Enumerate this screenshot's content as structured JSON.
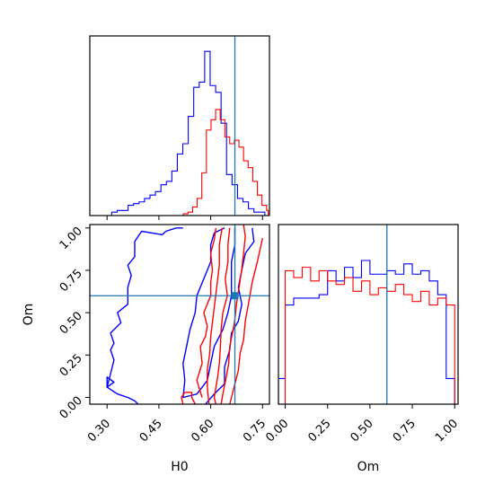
{
  "chart_data": {
    "type": "corner",
    "parameters": [
      "H0",
      "Om"
    ],
    "colors": {
      "blue": "#0000ff",
      "red": "#ff0000",
      "truth": "#1f77b4"
    },
    "truth": {
      "H0": 0.67,
      "Om": 0.6
    },
    "panels": [
      {
        "id": "hist_H0",
        "type": "histogram",
        "xlim": [
          0.25,
          0.77
        ],
        "ylim": [
          0,
          105
        ],
        "y_ticks_visible": false,
        "x_tick_labels_visible": false,
        "x_ticks": [
          0.3,
          0.45,
          0.6,
          0.75
        ],
        "series": [
          {
            "color": "blue",
            "bin_edges": [
              0.25,
              0.2658,
              0.2817,
              0.2975,
              0.3133,
              0.3292,
              0.345,
              0.3608,
              0.3767,
              0.3925,
              0.4083,
              0.4242,
              0.44,
              0.4558,
              0.4717,
              0.4875,
              0.5033,
              0.5192,
              0.535,
              0.5508,
              0.5667,
              0.5825,
              0.5983,
              0.6142,
              0.63,
              0.6458,
              0.6617,
              0.6775,
              0.6933,
              0.7092,
              0.725,
              0.7408,
              0.7567
            ],
            "counts": [
              0,
              0,
              0,
              0,
              2,
              3,
              3,
              6,
              7,
              8,
              10,
              12,
              14,
              18,
              20,
              26,
              36,
              42,
              58,
              75,
              78,
              96,
              76,
              72,
              54,
              24,
              18,
              10,
              8,
              4,
              2,
              2
            ]
          },
          {
            "color": "red",
            "bin_edges": [
              0.5208,
              0.5342,
              0.5475,
              0.5608,
              0.5742,
              0.5875,
              0.6008,
              0.6142,
              0.6275,
              0.6408,
              0.655,
              0.6683,
              0.6817,
              0.695,
              0.7083,
              0.7217,
              0.735,
              0.7483,
              0.7617,
              0.7666
            ],
            "counts": [
              1,
              2,
              5,
              10,
              25,
              50,
              56,
              62,
              56,
              46,
              42,
              44,
              40,
              32,
              28,
              20,
              12,
              6,
              3
            ]
          }
        ]
      },
      {
        "id": "contour_H0_Om",
        "type": "contour",
        "xlabel": "H0",
        "ylabel": "Om",
        "xlim": [
          0.25,
          0.77
        ],
        "ylim": [
          -0.04,
          1.02
        ],
        "x_ticks": [
          0.3,
          0.45,
          0.6,
          0.75
        ],
        "x_tick_labels": [
          "0.30",
          "0.45",
          "0.60",
          "0.75"
        ],
        "y_ticks": [
          0.0,
          0.25,
          0.5,
          0.75,
          1.0
        ],
        "y_tick_labels": [
          "0.00",
          "0.25",
          "0.50",
          "0.75",
          "1.00"
        ],
        "contours": [
          {
            "color": "blue",
            "points": [
              [
                0.64,
                1.0
              ],
              [
                0.61,
                0.97
              ],
              [
                0.6,
                0.9
              ],
              [
                0.6,
                0.8
              ],
              [
                0.58,
                0.7
              ],
              [
                0.56,
                0.6
              ],
              [
                0.555,
                0.5
              ],
              [
                0.54,
                0.4
              ],
              [
                0.53,
                0.3
              ],
              [
                0.52,
                0.2
              ],
              [
                0.525,
                0.1
              ],
              [
                0.52,
                0.0
              ],
              [
                0.56,
                0.02
              ],
              [
                0.59,
                0.1
              ],
              [
                0.6,
                0.2
              ],
              [
                0.61,
                0.3
              ],
              [
                0.635,
                0.4
              ],
              [
                0.65,
                0.5
              ],
              [
                0.66,
                0.6
              ],
              [
                0.66,
                0.7
              ],
              [
                0.66,
                0.8
              ],
              [
                0.67,
                0.9
              ],
              [
                0.67,
                1.0
              ]
            ]
          },
          {
            "color": "blue",
            "points": [
              [
                0.52,
                1.0
              ],
              [
                0.5,
                1.0
              ],
              [
                0.47,
                0.98
              ],
              [
                0.46,
                0.96
              ],
              [
                0.4,
                0.98
              ],
              [
                0.38,
                0.92
              ],
              [
                0.38,
                0.83
              ],
              [
                0.36,
                0.78
              ],
              [
                0.37,
                0.72
              ],
              [
                0.36,
                0.65
              ],
              [
                0.36,
                0.55
              ],
              [
                0.33,
                0.5
              ],
              [
                0.34,
                0.44
              ],
              [
                0.31,
                0.38
              ],
              [
                0.32,
                0.32
              ],
              [
                0.31,
                0.28
              ],
              [
                0.32,
                0.22
              ],
              [
                0.31,
                0.14
              ],
              [
                0.3,
                0.06
              ],
              [
                0.33,
                0.02
              ],
              [
                0.36,
                0.0
              ],
              [
                0.38,
                -0.02
              ],
              [
                0.39,
                -0.04
              ]
            ]
          },
          {
            "color": "blue",
            "points": [
              [
                0.3,
                0.06
              ],
              [
                0.32,
                0.09
              ],
              [
                0.3,
                0.12
              ],
              [
                0.3,
                0.06
              ]
            ]
          },
          {
            "color": "blue",
            "points": [
              [
                0.72,
                1.0
              ],
              [
                0.725,
                0.92
              ],
              [
                0.7,
                0.85
              ],
              [
                0.69,
                0.75
              ],
              [
                0.68,
                0.65
              ],
              [
                0.69,
                0.55
              ],
              [
                0.68,
                0.45
              ],
              [
                0.66,
                0.38
              ],
              [
                0.655,
                0.28
              ],
              [
                0.64,
                0.18
              ],
              [
                0.64,
                0.08
              ],
              [
                0.61,
                0.02
              ],
              [
                0.585,
                -0.04
              ]
            ]
          },
          {
            "color": "red",
            "points": [
              [
                0.615,
                1.0
              ],
              [
                0.61,
                0.93
              ],
              [
                0.6,
                0.85
              ],
              [
                0.605,
                0.75
              ],
              [
                0.6,
                0.68
              ],
              [
                0.6,
                0.6
              ],
              [
                0.58,
                0.5
              ],
              [
                0.59,
                0.42
              ],
              [
                0.585,
                0.36
              ],
              [
                0.57,
                0.3
              ],
              [
                0.575,
                0.2
              ],
              [
                0.56,
                0.1
              ],
              [
                0.575,
                0.0
              ]
            ]
          },
          {
            "color": "red",
            "points": [
              [
                0.633,
                1.0
              ],
              [
                0.625,
                0.9
              ],
              [
                0.625,
                0.78
              ],
              [
                0.618,
                0.66
              ],
              [
                0.612,
                0.56
              ],
              [
                0.606,
                0.46
              ],
              [
                0.6,
                0.36
              ],
              [
                0.597,
                0.26
              ],
              [
                0.59,
                0.16
              ],
              [
                0.59,
                0.06
              ],
              [
                0.595,
                -0.04
              ]
            ]
          },
          {
            "color": "red",
            "points": [
              [
                0.655,
                1.0
              ],
              [
                0.65,
                0.9
              ],
              [
                0.65,
                0.8
              ],
              [
                0.642,
                0.7
              ],
              [
                0.648,
                0.6
              ],
              [
                0.635,
                0.5
              ],
              [
                0.63,
                0.4
              ],
              [
                0.628,
                0.3
              ],
              [
                0.625,
                0.2
              ],
              [
                0.62,
                0.12
              ],
              [
                0.615,
                0.06
              ],
              [
                0.61,
                0.0
              ],
              [
                0.615,
                -0.04
              ]
            ]
          },
          {
            "color": "red",
            "points": [
              [
                0.695,
                1.02
              ],
              [
                0.7,
                0.95
              ],
              [
                0.695,
                0.85
              ],
              [
                0.69,
                0.76
              ],
              [
                0.683,
                0.66
              ],
              [
                0.675,
                0.56
              ],
              [
                0.67,
                0.46
              ],
              [
                0.665,
                0.4
              ],
              [
                0.655,
                0.3
              ],
              [
                0.652,
                0.2
              ],
              [
                0.645,
                0.12
              ],
              [
                0.635,
                0.02
              ],
              [
                0.63,
                -0.04
              ]
            ]
          },
          {
            "color": "red",
            "points": [
              [
                0.75,
                0.94
              ],
              [
                0.735,
                0.8
              ],
              [
                0.72,
                0.68
              ],
              [
                0.71,
                0.56
              ],
              [
                0.7,
                0.45
              ],
              [
                0.695,
                0.34
              ],
              [
                0.685,
                0.26
              ],
              [
                0.68,
                0.16
              ],
              [
                0.67,
                0.08
              ],
              [
                0.66,
                0.0
              ],
              [
                0.655,
                -0.04
              ]
            ]
          },
          {
            "color": "red",
            "points": [
              [
                0.525,
                0.03
              ],
              [
                0.545,
                0.03
              ],
              [
                0.545,
                0.0
              ],
              [
                0.555,
                -0.04
              ]
            ]
          },
          {
            "color": "red",
            "points": [
              [
                0.52,
                -0.04
              ],
              [
                0.515,
                0.0
              ],
              [
                0.525,
                0.03
              ]
            ]
          }
        ],
        "marker": {
          "x": 0.67,
          "y": 0.6,
          "color": "truth"
        }
      },
      {
        "id": "hist_Om",
        "type": "histogram",
        "xlabel": "Om",
        "xlim": [
          -0.04,
          1.02
        ],
        "ylim": [
          0,
          105
        ],
        "y_ticks_visible": false,
        "x_ticks": [
          0.0,
          0.25,
          0.5,
          0.75,
          1.0
        ],
        "x_tick_labels": [
          "0.00",
          "0.25",
          "0.50",
          "0.75",
          "1.00"
        ],
        "series": [
          {
            "color": "blue",
            "bin_edges": [
              -0.04,
              0.0,
              0.05,
              0.1,
              0.15,
              0.2,
              0.25,
              0.3,
              0.35,
              0.4,
              0.45,
              0.5,
              0.55,
              0.6,
              0.65,
              0.7,
              0.75,
              0.8,
              0.85,
              0.9,
              0.95,
              1.0
            ],
            "counts": [
              15,
              58,
              62,
              62,
              62,
              64,
              78,
              72,
              80,
              74,
              84,
              76,
              76,
              78,
              76,
              82,
              76,
              78,
              72,
              64,
              15
            ]
          },
          {
            "color": "red",
            "bin_edges": [
              0.0,
              0.05,
              0.1,
              0.15,
              0.2,
              0.25,
              0.3,
              0.35,
              0.4,
              0.45,
              0.5,
              0.55,
              0.6,
              0.65,
              0.7,
              0.75,
              0.8,
              0.85,
              0.9,
              0.95,
              1.0
            ],
            "counts": [
              78,
              74,
              80,
              72,
              78,
              72,
              70,
              74,
              66,
              72,
              64,
              68,
              66,
              70,
              64,
              60,
              66,
              58,
              62,
              58
            ]
          }
        ]
      }
    ]
  }
}
